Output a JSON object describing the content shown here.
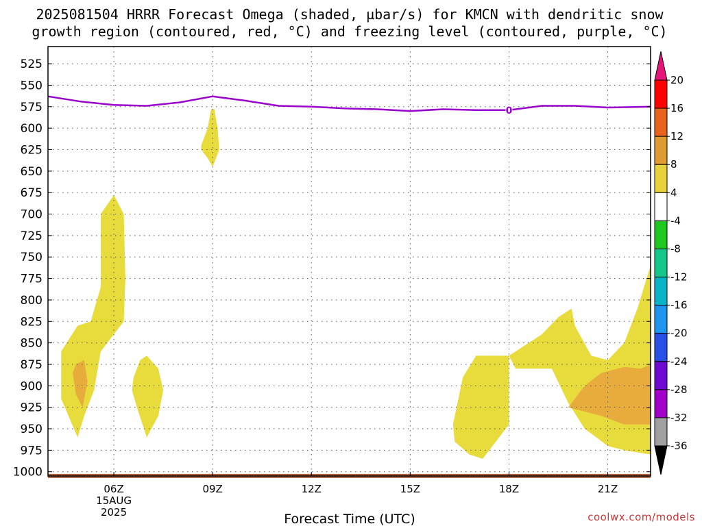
{
  "title_lines": [
    "2025081504 HRRR Forecast Omega (shaded, µbar/s) for KMCN with dendritic snow",
    "growth region (contoured, red, °C) and freezing level (contoured, purple, °C)"
  ],
  "credit": "coolwx.com/models",
  "chart_data": {
    "type": "time-height contour",
    "xlabel": "Forecast Time (UTC)",
    "x_range_hours": [
      4,
      22.3
    ],
    "x_ticks": [
      {
        "hour": 6,
        "label": "06Z",
        "sub": [
          "15AUG",
          "2025"
        ]
      },
      {
        "hour": 9,
        "label": "09Z"
      },
      {
        "hour": 12,
        "label": "12Z"
      },
      {
        "hour": 15,
        "label": "15Z"
      },
      {
        "hour": 18,
        "label": "18Z"
      },
      {
        "hour": 21,
        "label": "21Z"
      }
    ],
    "y_range_mb": [
      505,
      1005
    ],
    "y_ticks": [
      525,
      550,
      575,
      600,
      625,
      650,
      675,
      700,
      725,
      750,
      775,
      800,
      825,
      850,
      875,
      900,
      925,
      950,
      975,
      1000
    ],
    "colorbar": {
      "labels": [
        "20",
        "16",
        "12",
        "8",
        "4",
        "-4",
        "-8",
        "-12",
        "-16",
        "-20",
        "-24",
        "-28",
        "-32",
        "-36"
      ],
      "colors": [
        "#ff0000",
        "#e8641e",
        "#e09a32",
        "#e8d23c",
        "#ffffff",
        "#1ec81e",
        "#14c88c",
        "#0ab4c8",
        "#1e96f0",
        "#2850e6",
        "#6e0ad2",
        "#a000c8",
        "#a0a0a0"
      ],
      "over_color": "#e6147a",
      "under_color": "#000000"
    },
    "freezing_level": {
      "label": "0",
      "label_hour": 18,
      "color": "#9900cc",
      "points": [
        [
          4,
          563
        ],
        [
          5,
          569
        ],
        [
          6,
          573
        ],
        [
          7,
          574
        ],
        [
          8,
          570
        ],
        [
          9,
          563
        ],
        [
          10,
          568
        ],
        [
          11,
          574
        ],
        [
          12,
          575
        ],
        [
          13,
          577
        ],
        [
          14,
          578
        ],
        [
          15,
          580
        ],
        [
          16,
          578
        ],
        [
          17,
          579
        ],
        [
          18,
          579
        ],
        [
          19,
          574
        ],
        [
          20,
          574
        ],
        [
          21,
          576
        ],
        [
          22.3,
          575
        ]
      ]
    },
    "omega_areas": [
      {
        "name": "omega-area-07z-column",
        "color": "#e8db3c",
        "points": [
          [
            4.4,
            860
          ],
          [
            4.9,
            830
          ],
          [
            5.3,
            825
          ],
          [
            5.6,
            785
          ],
          [
            5.6,
            700
          ],
          [
            6.0,
            678
          ],
          [
            6.3,
            700
          ],
          [
            6.35,
            775
          ],
          [
            6.3,
            825
          ],
          [
            5.9,
            845
          ],
          [
            5.6,
            860
          ],
          [
            5.4,
            905
          ],
          [
            5.1,
            935
          ],
          [
            4.9,
            960
          ],
          [
            4.4,
            915
          ],
          [
            4.4,
            860
          ]
        ]
      },
      {
        "name": "omega-area-07z-core",
        "color": "#e8ac3c",
        "points": [
          [
            4.85,
            875
          ],
          [
            5.1,
            870
          ],
          [
            5.2,
            895
          ],
          [
            5.05,
            925
          ],
          [
            4.85,
            910
          ],
          [
            4.75,
            885
          ],
          [
            4.85,
            875
          ]
        ]
      },
      {
        "name": "omega-area-08z-blob",
        "color": "#e8db3c",
        "points": [
          [
            6.6,
            890
          ],
          [
            6.8,
            870
          ],
          [
            7.0,
            865
          ],
          [
            7.35,
            880
          ],
          [
            7.5,
            905
          ],
          [
            7.35,
            935
          ],
          [
            7.0,
            960
          ],
          [
            6.7,
            925
          ],
          [
            6.55,
            905
          ],
          [
            6.6,
            890
          ]
        ]
      },
      {
        "name": "omega-area-09z-patch",
        "color": "#e8db3c",
        "points": [
          [
            8.65,
            620
          ],
          [
            8.85,
            600
          ],
          [
            8.95,
            578
          ],
          [
            9.05,
            578
          ],
          [
            9.15,
            600
          ],
          [
            9.2,
            625
          ],
          [
            9.0,
            645
          ],
          [
            8.85,
            635
          ],
          [
            8.65,
            625
          ],
          [
            8.65,
            620
          ]
        ]
      },
      {
        "name": "omega-area-17z-blob",
        "color": "#e8db3c",
        "points": [
          [
            16.3,
            945
          ],
          [
            16.6,
            890
          ],
          [
            17.0,
            865
          ],
          [
            18.0,
            865
          ],
          [
            18.0,
            945
          ],
          [
            17.5,
            970
          ],
          [
            17.2,
            985
          ],
          [
            16.8,
            980
          ],
          [
            16.35,
            965
          ],
          [
            16.3,
            945
          ]
        ]
      },
      {
        "name": "omega-area-20z-region",
        "color": "#e8db3c",
        "points": [
          [
            18.0,
            865
          ],
          [
            19.0,
            840
          ],
          [
            19.5,
            820
          ],
          [
            19.9,
            810
          ],
          [
            20.0,
            830
          ],
          [
            20.5,
            865
          ],
          [
            21.0,
            870
          ],
          [
            21.5,
            850
          ],
          [
            21.9,
            810
          ],
          [
            22.3,
            760
          ],
          [
            22.3,
            980
          ],
          [
            21.5,
            975
          ],
          [
            21.0,
            970
          ],
          [
            20.3,
            950
          ],
          [
            19.8,
            920
          ],
          [
            19.3,
            880
          ],
          [
            18.2,
            880
          ],
          [
            18.0,
            865
          ]
        ]
      },
      {
        "name": "omega-area-21z-core",
        "color": "#e8ac3c",
        "points": [
          [
            19.8,
            925
          ],
          [
            20.3,
            900
          ],
          [
            20.8,
            885
          ],
          [
            21.5,
            878
          ],
          [
            22.0,
            880
          ],
          [
            22.3,
            875
          ],
          [
            22.3,
            945
          ],
          [
            21.5,
            945
          ],
          [
            20.8,
            935
          ],
          [
            20.3,
            930
          ],
          [
            19.8,
            925
          ]
        ]
      }
    ],
    "surface_band": {
      "color": "#b0603c",
      "top_mb": 1002.5,
      "bottom_mb": 1005
    }
  }
}
